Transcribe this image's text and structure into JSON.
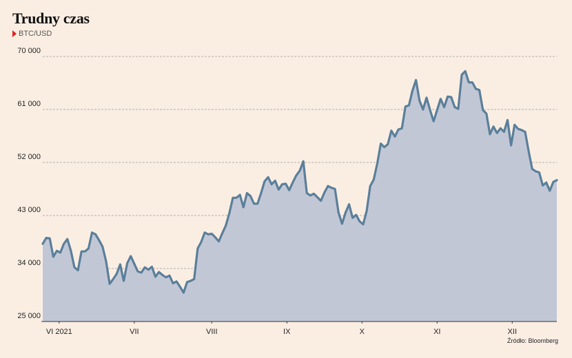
{
  "title": "Trudny czas",
  "subtitle": "BTC/USD",
  "source": "Źródło: Bloomberg",
  "colors": {
    "line": "#5a7f9a",
    "area": "#c2c7d6",
    "background": "#faeee3",
    "grid": "#9a9a9a",
    "marker": "#e0231e"
  },
  "chart_data": {
    "type": "area",
    "title": "Trudny czas",
    "subtitle": "BTC/USD",
    "xlabel": "",
    "ylabel": "",
    "ylim": [
      25000,
      70000
    ],
    "yticks": [
      25000,
      34000,
      43000,
      52000,
      61000,
      70000
    ],
    "ytick_labels": [
      "25 000",
      "34 000",
      "43 000",
      "52 000",
      "61 000",
      "70 000"
    ],
    "x_range": [
      0,
      214
    ],
    "xticks": [
      {
        "pos": 7,
        "label": "VI 2021"
      },
      {
        "pos": 39,
        "label": "VII"
      },
      {
        "pos": 72,
        "label": "VIII"
      },
      {
        "pos": 104,
        "label": "IX"
      },
      {
        "pos": 136,
        "label": "X"
      },
      {
        "pos": 168,
        "label": "XI"
      },
      {
        "pos": 200,
        "label": "XII"
      }
    ],
    "grid": "horizontal dashed",
    "series": [
      {
        "points": [
          [
            0,
            38200
          ],
          [
            1.5,
            39200
          ],
          [
            3,
            39100
          ],
          [
            4.5,
            36000
          ],
          [
            6,
            37000
          ],
          [
            7.5,
            36700
          ],
          [
            9,
            38200
          ],
          [
            10.5,
            39000
          ],
          [
            12,
            37000
          ],
          [
            13.5,
            34200
          ],
          [
            15,
            33700
          ],
          [
            16.5,
            36900
          ],
          [
            18,
            36900
          ],
          [
            19.5,
            37400
          ],
          [
            21,
            40100
          ],
          [
            22.5,
            39800
          ],
          [
            24,
            38800
          ],
          [
            25.5,
            37700
          ],
          [
            27,
            35200
          ],
          [
            28.5,
            31400
          ],
          [
            30,
            32200
          ],
          [
            31.5,
            33100
          ],
          [
            33,
            34700
          ],
          [
            34.5,
            31900
          ],
          [
            36,
            34900
          ],
          [
            37.5,
            36100
          ],
          [
            39,
            34800
          ],
          [
            40.5,
            33500
          ],
          [
            42,
            33300
          ],
          [
            43.5,
            34200
          ],
          [
            45,
            33800
          ],
          [
            46.5,
            34300
          ],
          [
            48,
            32600
          ],
          [
            49.5,
            33400
          ],
          [
            51,
            32900
          ],
          [
            52.5,
            32500
          ],
          [
            54,
            32800
          ],
          [
            55.5,
            31500
          ],
          [
            57,
            31800
          ],
          [
            58.5,
            30900
          ],
          [
            60,
            29900
          ],
          [
            61.5,
            31700
          ],
          [
            63,
            31900
          ],
          [
            64.5,
            32200
          ],
          [
            66,
            37400
          ],
          [
            67.5,
            38500
          ],
          [
            69,
            40100
          ],
          [
            70.5,
            39800
          ],
          [
            72,
            39900
          ],
          [
            73.5,
            39300
          ],
          [
            75,
            38600
          ],
          [
            76.5,
            40000
          ],
          [
            78,
            41300
          ],
          [
            79.5,
            43400
          ],
          [
            81,
            46000
          ],
          [
            82.5,
            46000
          ],
          [
            84,
            46500
          ],
          [
            85.5,
            44400
          ],
          [
            87,
            46800
          ],
          [
            88.5,
            46300
          ],
          [
            90,
            45000
          ],
          [
            91.5,
            45000
          ],
          [
            93,
            46800
          ],
          [
            94.5,
            48800
          ],
          [
            96,
            49500
          ],
          [
            97.5,
            48300
          ],
          [
            99,
            48900
          ],
          [
            100.5,
            47400
          ],
          [
            102,
            48300
          ],
          [
            103.5,
            48400
          ],
          [
            105,
            47300
          ],
          [
            106.5,
            48600
          ],
          [
            108,
            49800
          ],
          [
            109.5,
            50600
          ],
          [
            111,
            52200
          ],
          [
            112.5,
            46800
          ],
          [
            114,
            46400
          ],
          [
            115.5,
            46700
          ],
          [
            117,
            46100
          ],
          [
            118.5,
            45500
          ],
          [
            120,
            46900
          ],
          [
            121.5,
            48000
          ],
          [
            123,
            47700
          ],
          [
            124.5,
            47500
          ],
          [
            126,
            43500
          ],
          [
            127.5,
            41600
          ],
          [
            129,
            43500
          ],
          [
            130.5,
            44900
          ],
          [
            132,
            42600
          ],
          [
            133.5,
            43100
          ],
          [
            135,
            42000
          ],
          [
            136.5,
            41500
          ],
          [
            138,
            43800
          ],
          [
            139.5,
            48000
          ],
          [
            141,
            49100
          ],
          [
            142.5,
            51800
          ],
          [
            144,
            55200
          ],
          [
            145.5,
            54600
          ],
          [
            147,
            55100
          ],
          [
            148.5,
            57400
          ],
          [
            150,
            56400
          ],
          [
            151.5,
            57600
          ],
          [
            153,
            57800
          ],
          [
            154.5,
            61500
          ],
          [
            156,
            61700
          ],
          [
            157.5,
            64200
          ],
          [
            159,
            66000
          ],
          [
            160.5,
            62500
          ],
          [
            162,
            61000
          ],
          [
            163.5,
            63000
          ],
          [
            165,
            60900
          ],
          [
            166.5,
            59000
          ],
          [
            168,
            60900
          ],
          [
            169.5,
            62800
          ],
          [
            171,
            61400
          ],
          [
            172.5,
            63200
          ],
          [
            174,
            63100
          ],
          [
            175.5,
            61400
          ],
          [
            177,
            61100
          ],
          [
            178.5,
            66900
          ],
          [
            180,
            67500
          ],
          [
            181.5,
            65600
          ],
          [
            183,
            65600
          ],
          [
            184.5,
            64500
          ],
          [
            186,
            64300
          ],
          [
            187.5,
            60900
          ],
          [
            189,
            60300
          ],
          [
            190.5,
            56800
          ],
          [
            192,
            58100
          ],
          [
            193.5,
            57000
          ],
          [
            195,
            57800
          ],
          [
            196.5,
            57200
          ],
          [
            198,
            59200
          ],
          [
            199.5,
            54900
          ],
          [
            201,
            58400
          ],
          [
            202.5,
            57700
          ],
          [
            204,
            57500
          ],
          [
            205.5,
            57200
          ],
          [
            207,
            53900
          ],
          [
            208.5,
            50900
          ],
          [
            210,
            50500
          ],
          [
            211.5,
            50300
          ],
          [
            213,
            48100
          ],
          [
            214.5,
            48600
          ]
        ]
      },
      {
        "points": [
          [
            216,
            47200
          ],
          [
            217.5,
            48700
          ],
          [
            219,
            49000
          ]
        ]
      }
    ]
  }
}
